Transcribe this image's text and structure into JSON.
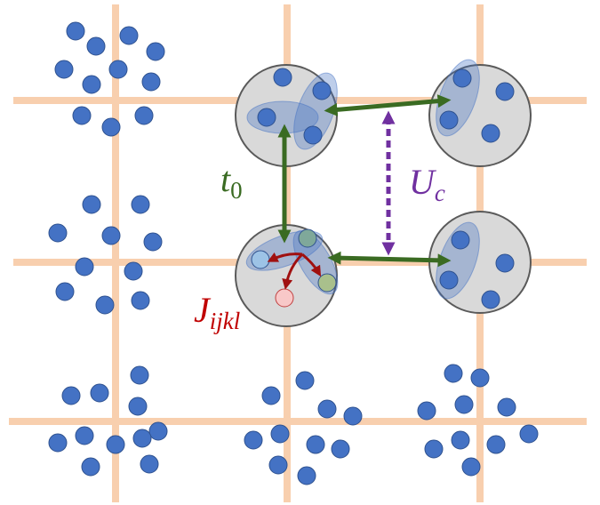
{
  "labels": [
    {
      "base": "t",
      "sub": "0"
    },
    {
      "base": "U",
      "sub": "c"
    },
    {
      "base": "J",
      "sub": "ijkl"
    }
  ]
}
